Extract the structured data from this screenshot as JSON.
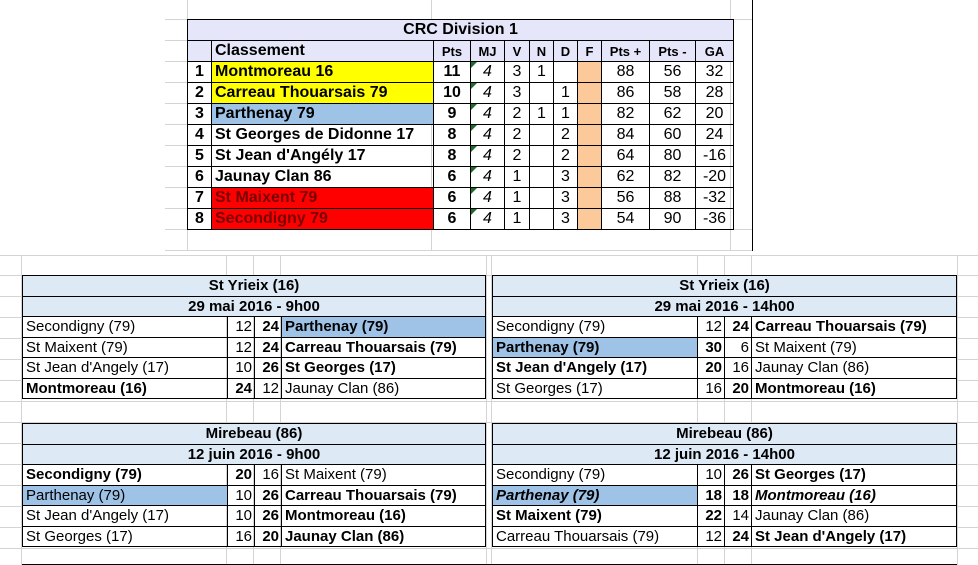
{
  "standings": {
    "title": "CRC Division 1",
    "headers": {
      "classement": "Classement",
      "pts": "Pts",
      "mj": "MJ",
      "v": "V",
      "n": "N",
      "d": "D",
      "f": "F",
      "pts_plus": "Pts +",
      "pts_minus": "Pts -",
      "ga": "GA"
    },
    "rows": [
      {
        "rank": "1",
        "team": "Montmoreau 16",
        "pts": "11",
        "mj": "4",
        "v": "3",
        "n": "1",
        "d": "",
        "f": "",
        "pts_plus": "88",
        "pts_minus": "56",
        "ga": "32",
        "highlight": "yellow"
      },
      {
        "rank": "2",
        "team": "Carreau Thouarsais 79",
        "pts": "10",
        "mj": "4",
        "v": "3",
        "n": "",
        "d": "1",
        "f": "",
        "pts_plus": "86",
        "pts_minus": "58",
        "ga": "28",
        "highlight": "yellow"
      },
      {
        "rank": "3",
        "team": "Parthenay 79",
        "pts": "9",
        "mj": "4",
        "v": "2",
        "n": "1",
        "d": "1",
        "f": "",
        "pts_plus": "82",
        "pts_minus": "62",
        "ga": "20",
        "highlight": "blue"
      },
      {
        "rank": "4",
        "team": "St Georges de Didonne 17",
        "pts": "8",
        "mj": "4",
        "v": "2",
        "n": "",
        "d": "2",
        "f": "",
        "pts_plus": "84",
        "pts_minus": "60",
        "ga": "24",
        "highlight": "none"
      },
      {
        "rank": "5",
        "team": "St Jean d'Angély 17",
        "pts": "8",
        "mj": "4",
        "v": "2",
        "n": "",
        "d": "2",
        "f": "",
        "pts_plus": "64",
        "pts_minus": "80",
        "ga": "-16",
        "highlight": "none"
      },
      {
        "rank": "6",
        "team": "Jaunay Clan 86",
        "pts": "6",
        "mj": "4",
        "v": "1",
        "n": "",
        "d": "3",
        "f": "",
        "pts_plus": "62",
        "pts_minus": "82",
        "ga": "-20",
        "highlight": "none"
      },
      {
        "rank": "7",
        "team": "St Maixent 79",
        "pts": "6",
        "mj": "4",
        "v": "1",
        "n": "",
        "d": "3",
        "f": "",
        "pts_plus": "56",
        "pts_minus": "88",
        "ga": "-32",
        "highlight": "red"
      },
      {
        "rank": "8",
        "team": "Secondigny 79",
        "pts": "6",
        "mj": "4",
        "v": "1",
        "n": "",
        "d": "3",
        "f": "",
        "pts_plus": "54",
        "pts_minus": "90",
        "ga": "-36",
        "highlight": "red"
      }
    ]
  },
  "matches": [
    {
      "venue": "St Yrieix (16)",
      "date": "29 mai 2016 - 9h00",
      "games": [
        {
          "home": "Secondigny (79)",
          "home_score": "12",
          "away_score": "24",
          "away": "Parthenay (79)"
        },
        {
          "home": "St Maixent (79)",
          "home_score": "12",
          "away_score": "24",
          "away": "Carreau Thouarsais (79)"
        },
        {
          "home": "St Jean d'Angely (17)",
          "home_score": "10",
          "away_score": "26",
          "away": "St Georges (17)"
        },
        {
          "home": "Montmoreau (16)",
          "home_score": "24",
          "away_score": "12",
          "away": "Jaunay Clan (86)"
        }
      ]
    },
    {
      "venue": "St Yrieix (16)",
      "date": "29 mai 2016 - 14h00",
      "games": [
        {
          "home": "Secondigny (79)",
          "home_score": "12",
          "away_score": "24",
          "away": "Carreau Thouarsais (79)"
        },
        {
          "home": "Parthenay (79)",
          "home_score": "30",
          "away_score": "6",
          "away": "St Maixent (79)"
        },
        {
          "home": "St Jean d'Angely (17)",
          "home_score": "20",
          "away_score": "16",
          "away": "Jaunay Clan (86)"
        },
        {
          "home": "St Georges (17)",
          "home_score": "16",
          "away_score": "20",
          "away": "Montmoreau (16)"
        }
      ]
    },
    {
      "venue": "Mirebeau (86)",
      "date": "12 juin 2016 - 9h00",
      "games": [
        {
          "home": "Secondigny (79)",
          "home_score": "20",
          "away_score": "16",
          "away": "St Maixent (79)"
        },
        {
          "home": "Parthenay (79)",
          "home_score": "10",
          "away_score": "26",
          "away": "Carreau Thouarsais (79)"
        },
        {
          "home": "St Jean d'Angely (17)",
          "home_score": "10",
          "away_score": "26",
          "away": "Montmoreau (16)"
        },
        {
          "home": "St Georges (17)",
          "home_score": "16",
          "away_score": "20",
          "away": "Jaunay Clan (86)"
        }
      ]
    },
    {
      "venue": "Mirebeau (86)",
      "date": "12 juin 2016 - 14h00",
      "games": [
        {
          "home": "Secondigny (79)",
          "home_score": "10",
          "away_score": "26",
          "away": "St Georges (17)"
        },
        {
          "home": "Parthenay (79)",
          "home_score": "18",
          "away_score": "18",
          "away": "Montmoreau (16)"
        },
        {
          "home": "St Maixent (79)",
          "home_score": "22",
          "away_score": "14",
          "away": "Jaunay Clan (86)"
        },
        {
          "home": "Carreau Thouarsais (79)",
          "home_score": "12",
          "away_score": "24",
          "away": "St Jean d'Angely (17)"
        }
      ]
    }
  ],
  "colors": {
    "leader_yellow": "#ffff00",
    "parthenay_blue": "#9fc3e7",
    "relegation_red": "#ff0000",
    "forfeit_orange": "#fbc99a",
    "header_lavender": "#e6e6fa",
    "match_header_blue": "#dde9f5"
  }
}
